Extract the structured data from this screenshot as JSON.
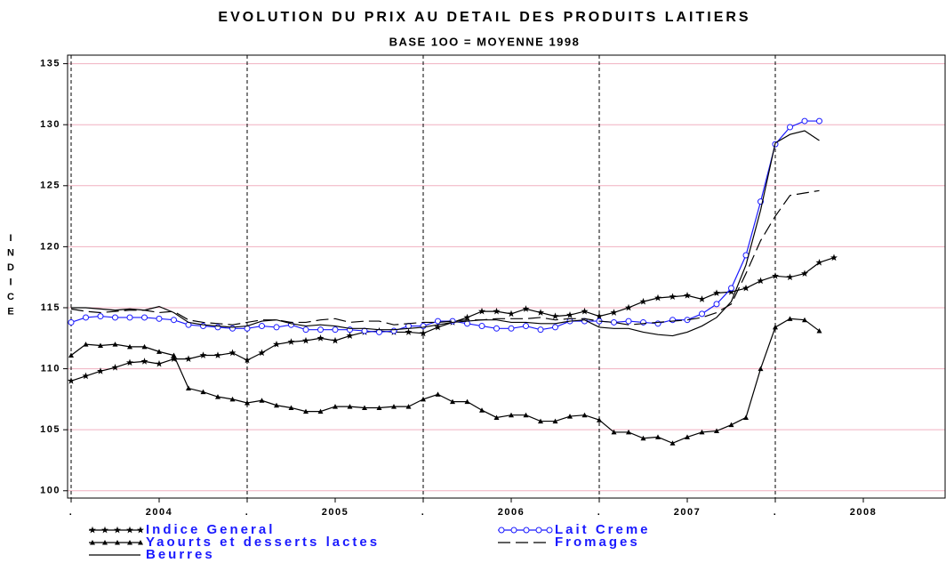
{
  "chart_data": {
    "type": "line",
    "title": "EVOLUTION DU PRIX AU DETAIL DES PRODUITS LAITIERS",
    "subtitle": "BASE 1OO = MOYENNE 1998",
    "y_label": "INDICE",
    "categories": [
      ".",
      null,
      null,
      null,
      null,
      null,
      "2004",
      null,
      null,
      null,
      null,
      null,
      ".",
      null,
      null,
      null,
      null,
      null,
      "2005",
      null,
      null,
      null,
      null,
      null,
      ".",
      null,
      null,
      null,
      null,
      null,
      "2006",
      null,
      null,
      null,
      null,
      null,
      ".",
      null,
      null,
      null,
      null,
      null,
      "2007",
      null,
      null,
      null,
      null,
      null,
      ".",
      null,
      null,
      null,
      null,
      null,
      "2008",
      null,
      null,
      null,
      null,
      null
    ],
    "ylim": [
      99.4,
      135.7
    ],
    "yticks": [
      100,
      105,
      110,
      115,
      120,
      125,
      130,
      135
    ],
    "grid": true,
    "grid_color": "#f0b0c0",
    "series": [
      {
        "name": "Indice General",
        "color": "#000000",
        "marker": "star",
        "dash": "solid",
        "values": [
          109.0,
          109.4,
          109.8,
          110.1,
          110.5,
          110.6,
          110.4,
          110.8,
          110.8,
          111.1,
          111.1,
          111.3,
          110.7,
          111.3,
          112.0,
          112.2,
          112.3,
          112.5,
          112.3,
          112.7,
          113.0,
          113.1,
          113.0,
          113.0,
          112.9,
          113.4,
          113.8,
          114.2,
          114.7,
          114.7,
          114.5,
          114.9,
          114.6,
          114.3,
          114.4,
          114.7,
          114.3,
          114.6,
          115.0,
          115.5,
          115.8,
          115.9,
          116.0,
          115.7,
          116.2,
          116.3,
          116.6,
          117.2,
          117.6,
          117.5,
          117.8,
          118.7,
          119.1,
          null,
          null,
          null,
          null,
          null,
          null,
          null
        ]
      },
      {
        "name": "Lait Creme",
        "color": "#1a1aff",
        "marker": "circle",
        "dash": "solid",
        "values": [
          113.8,
          114.2,
          114.3,
          114.2,
          114.2,
          114.2,
          114.1,
          114.0,
          113.6,
          113.5,
          113.4,
          113.3,
          113.3,
          113.5,
          113.4,
          113.6,
          113.2,
          113.2,
          113.2,
          113.2,
          113.1,
          113.0,
          113.1,
          113.5,
          113.5,
          113.9,
          113.9,
          113.7,
          113.5,
          113.3,
          113.3,
          113.5,
          113.2,
          113.4,
          113.9,
          113.9,
          113.9,
          113.8,
          113.9,
          113.8,
          113.7,
          114.0,
          114.0,
          114.5,
          115.3,
          116.6,
          119.3,
          123.7,
          128.4,
          129.8,
          130.3,
          130.3,
          null,
          null,
          null,
          null,
          null,
          null,
          null,
          null
        ]
      },
      {
        "name": "Yaourts et desserts lactes",
        "color": "#000000",
        "marker": "triangle",
        "dash": "solid",
        "values": [
          111.1,
          112.0,
          111.9,
          112.0,
          111.8,
          111.8,
          111.4,
          111.1,
          108.4,
          108.1,
          107.7,
          107.5,
          107.2,
          107.4,
          107.0,
          106.8,
          106.5,
          106.5,
          106.9,
          106.9,
          106.8,
          106.8,
          106.9,
          106.9,
          107.5,
          107.9,
          107.3,
          107.3,
          106.6,
          106.0,
          106.2,
          106.2,
          105.7,
          105.7,
          106.1,
          106.2,
          105.8,
          104.8,
          104.8,
          104.3,
          104.4,
          103.9,
          104.4,
          104.8,
          104.9,
          105.4,
          106.0,
          110.0,
          113.4,
          114.1,
          114.0,
          113.1,
          null,
          null,
          null,
          null,
          null,
          null,
          null,
          null
        ]
      },
      {
        "name": "Fromages",
        "color": "#000000",
        "marker": "none",
        "dash": "long",
        "values": [
          114.9,
          114.7,
          114.6,
          114.7,
          114.8,
          114.8,
          114.6,
          114.7,
          114.0,
          113.8,
          113.7,
          113.6,
          113.8,
          114.0,
          114.0,
          113.8,
          113.8,
          114.0,
          114.1,
          113.8,
          113.9,
          113.9,
          113.6,
          113.7,
          113.8,
          113.8,
          113.9,
          114.0,
          114.0,
          114.1,
          114.1,
          114.1,
          114.2,
          114.0,
          114.1,
          114.1,
          113.9,
          113.8,
          113.6,
          113.7,
          113.8,
          113.9,
          114.0,
          114.2,
          114.6,
          115.3,
          117.8,
          120.5,
          122.5,
          124.2,
          124.4,
          124.6,
          null,
          null,
          null,
          null,
          null,
          null,
          null,
          null
        ]
      },
      {
        "name": "Beurres",
        "color": "#000000",
        "marker": "none",
        "dash": "solid",
        "values": [
          115.0,
          115.0,
          114.9,
          114.8,
          114.9,
          114.8,
          115.1,
          114.6,
          113.8,
          113.6,
          113.5,
          113.4,
          113.5,
          113.9,
          114.0,
          113.7,
          113.5,
          113.6,
          113.5,
          113.3,
          113.3,
          113.2,
          113.2,
          113.3,
          113.4,
          113.6,
          113.8,
          113.9,
          114.0,
          114.0,
          113.8,
          113.8,
          113.7,
          113.7,
          113.9,
          114.0,
          113.4,
          113.3,
          113.3,
          113.0,
          112.8,
          112.7,
          113.0,
          113.5,
          114.2,
          115.5,
          118.5,
          123.0,
          128.5,
          129.2,
          129.5,
          128.7,
          null,
          null,
          null,
          null,
          null,
          null,
          null,
          null
        ]
      }
    ]
  }
}
